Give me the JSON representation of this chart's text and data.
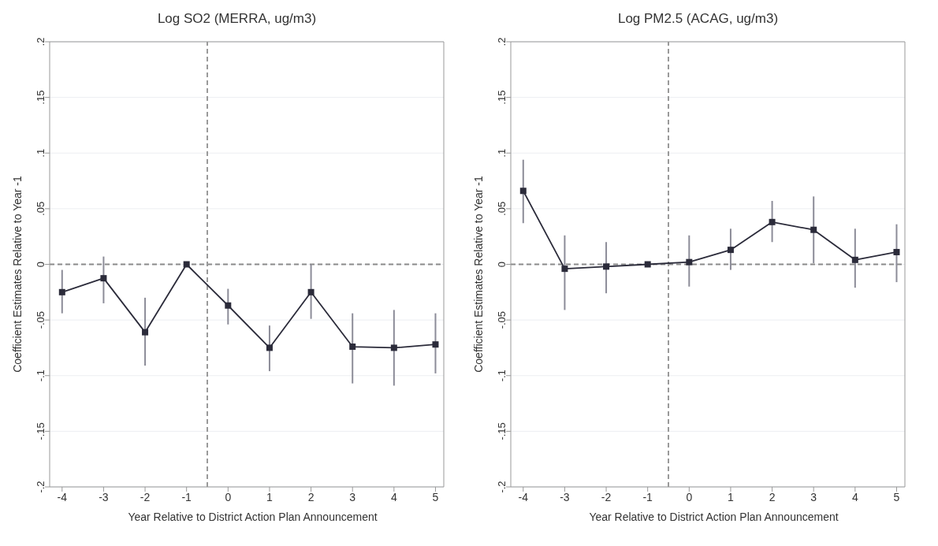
{
  "chart_data": [
    {
      "type": "line",
      "title": "Log SO2 (MERRA, ug/m3)",
      "xlabel": "Year Relative to District Action Plan Announcement",
      "ylabel": "Coefficient Estimates Relative to Year -1",
      "x": [
        -4,
        -3,
        -2,
        -1,
        0,
        1,
        2,
        3,
        4,
        5
      ],
      "series": [
        {
          "color": "#2b2b3a",
          "values": [
            -0.025,
            -0.0125,
            -0.061,
            0,
            -0.037,
            -0.075,
            -0.025,
            -0.074,
            -0.075,
            -0.072
          ],
          "errors": [
            [
              -0.044,
              -0.005
            ],
            [
              -0.035,
              0.007
            ],
            [
              -0.091,
              -0.03
            ],
            null,
            [
              -0.054,
              -0.022
            ],
            [
              -0.096,
              -0.055
            ],
            [
              -0.049,
              0
            ],
            [
              -0.107,
              -0.044
            ],
            [
              -0.109,
              -0.041
            ],
            [
              -0.098,
              -0.044
            ]
          ]
        }
      ],
      "xlim": [
        -4.3,
        5.2
      ],
      "xticks": [
        -4,
        -3,
        -2,
        -1,
        0,
        1,
        2,
        3,
        4,
        5
      ],
      "ylim": [
        -0.2,
        0.2
      ],
      "yticks": [
        {
          "value": -0.2,
          "label": "-.2"
        },
        {
          "value": -0.15,
          "label": "-.15"
        },
        {
          "value": -0.1,
          "label": "-.1"
        },
        {
          "value": -0.05,
          "label": "-.05"
        },
        0,
        {
          "value": 0.05,
          "label": ".05"
        },
        {
          "value": 0.1,
          "label": ".1"
        },
        {
          "value": 0.15,
          "label": ".15"
        },
        {
          "value": 0.2,
          "label": ".2"
        }
      ],
      "ref_lines": [
        {
          "axis": "y",
          "value": 0,
          "color": "#8a8a8a",
          "line_style": "dashed"
        },
        {
          "axis": "x",
          "value": -0.5,
          "color": "#9a9a9a",
          "line_style": "dashed"
        }
      ],
      "grid": "y",
      "marker": "square",
      "line_style": "solid"
    },
    {
      "type": "line",
      "title": "Log PM2.5 (ACAG, ug/m3)",
      "xlabel": "Year Relative to District Action Plan Announcement",
      "ylabel": "Coefficient Estimates Relative to Year -1",
      "x": [
        -4,
        -3,
        -2,
        -1,
        0,
        1,
        2,
        3,
        4,
        5
      ],
      "series": [
        {
          "color": "#2b2b3a",
          "values": [
            0.066,
            -0.004,
            -0.002,
            0,
            0.002,
            0.013,
            0.038,
            0.031,
            0.004,
            0.011
          ],
          "errors": [
            [
              0.037,
              0.094
            ],
            [
              -0.041,
              0.026
            ],
            [
              -0.026,
              0.02
            ],
            null,
            [
              -0.02,
              0.026
            ],
            [
              -0.005,
              0.032
            ],
            [
              0.02,
              0.057
            ],
            [
              0.001,
              0.061
            ],
            [
              -0.021,
              0.032
            ],
            [
              -0.016,
              0.036
            ]
          ]
        }
      ],
      "xlim": [
        -4.3,
        5.2
      ],
      "xticks": [
        -4,
        -3,
        -2,
        -1,
        0,
        1,
        2,
        3,
        4,
        5
      ],
      "ylim": [
        -0.2,
        0.2
      ],
      "yticks": [
        {
          "value": -0.2,
          "label": "-.2"
        },
        {
          "value": -0.15,
          "label": "-.15"
        },
        {
          "value": -0.1,
          "label": "-.1"
        },
        {
          "value": -0.05,
          "label": "-.05"
        },
        0,
        {
          "value": 0.05,
          "label": ".05"
        },
        {
          "value": 0.1,
          "label": ".1"
        },
        {
          "value": 0.15,
          "label": ".15"
        },
        {
          "value": 0.2,
          "label": ".2"
        }
      ],
      "ref_lines": [
        {
          "axis": "y",
          "value": 0,
          "color": "#8a8a8a",
          "line_style": "dashed"
        },
        {
          "axis": "x",
          "value": -0.5,
          "color": "#9a9a9a",
          "line_style": "dashed"
        }
      ],
      "grid": "y",
      "marker": "square",
      "line_style": "solid"
    }
  ]
}
